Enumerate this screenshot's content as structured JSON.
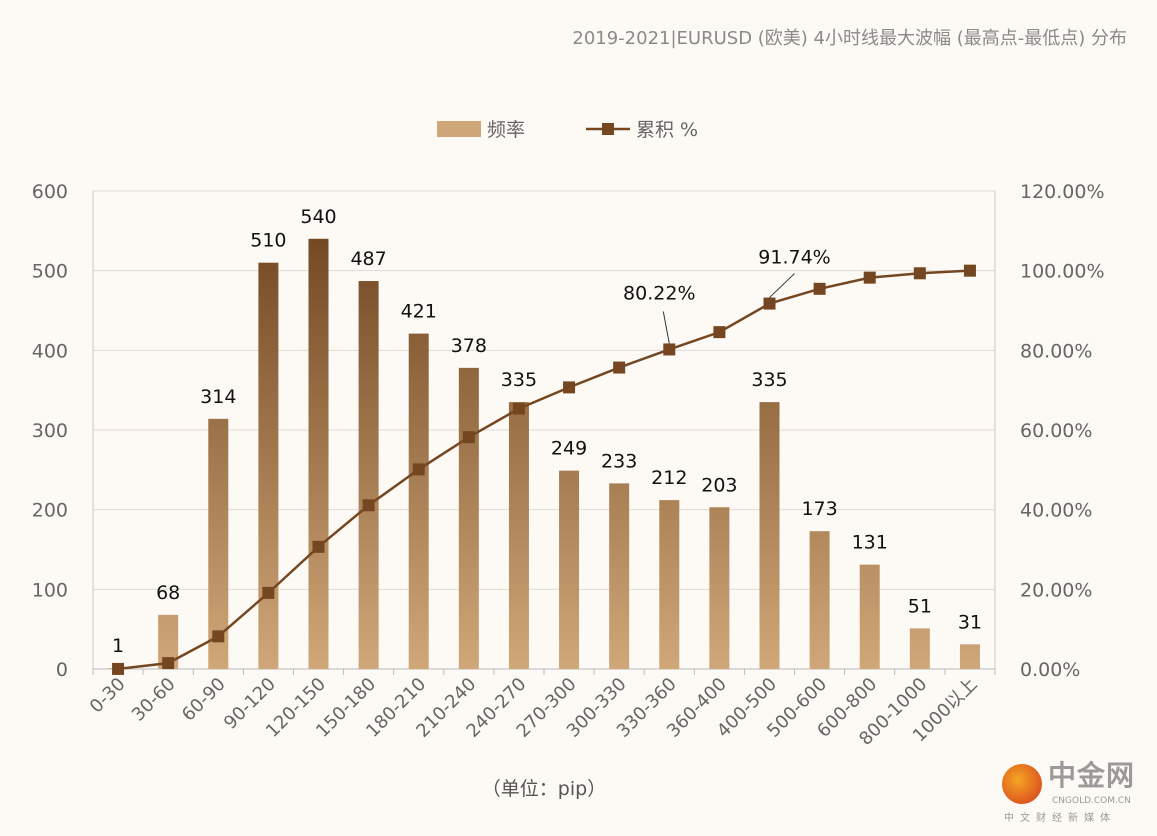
{
  "title": "2019-2021|EURUSD (欧美) 4小时线最大波幅 (最高点-最低点) 分布",
  "watermark": {
    "main": "中金网",
    "url": "CNGOLD.COM.CN",
    "sub": "中文财经新媒体"
  },
  "colors": {
    "bar_top": "#6e441f",
    "bar_bottom": "#cfa778",
    "line": "#744722",
    "grid": "#e2dbd3",
    "text": "#666666"
  },
  "chart_data": {
    "type": "bar+line",
    "title": "2019-2021|EURUSD (欧美) 4小时线最大波幅 (最高点-最低点) 分布",
    "xlabel": "（单位：pip）",
    "categories": [
      "0-30",
      "30-60",
      "60-90",
      "90-120",
      "120-150",
      "150-180",
      "180-210",
      "210-240",
      "240-270",
      "270-300",
      "300-330",
      "330-360",
      "360-400",
      "400-500",
      "500-600",
      "600-800",
      "800-1000",
      "1000以上"
    ],
    "series": [
      {
        "name": "频率",
        "type": "bar",
        "axis": "left",
        "values": [
          1,
          68,
          314,
          510,
          540,
          487,
          421,
          378,
          335,
          249,
          233,
          212,
          203,
          335,
          173,
          131,
          51,
          31
        ],
        "data_labels": true
      },
      {
        "name": "累积 %",
        "type": "line",
        "axis": "right",
        "marker": "square",
        "values": [
          0.02,
          1.48,
          8.2,
          19.11,
          30.67,
          41.1,
          50.11,
          58.2,
          65.37,
          70.7,
          75.68,
          80.22,
          84.57,
          91.74,
          95.44,
          98.25,
          99.34,
          100.0
        ],
        "labeled_points": {
          "330-360": "80.22%",
          "400-500": "91.74%"
        }
      }
    ],
    "ylim": [
      0,
      600
    ],
    "yticks": [
      "0",
      "100",
      "200",
      "300",
      "400",
      "500",
      "600"
    ],
    "y2lim": [
      0,
      120
    ],
    "y2ticks": [
      "0.00%",
      "20.00%",
      "40.00%",
      "60.00%",
      "80.00%",
      "100.00%",
      "120.00%"
    ],
    "grid": true,
    "legend": "top-center"
  }
}
